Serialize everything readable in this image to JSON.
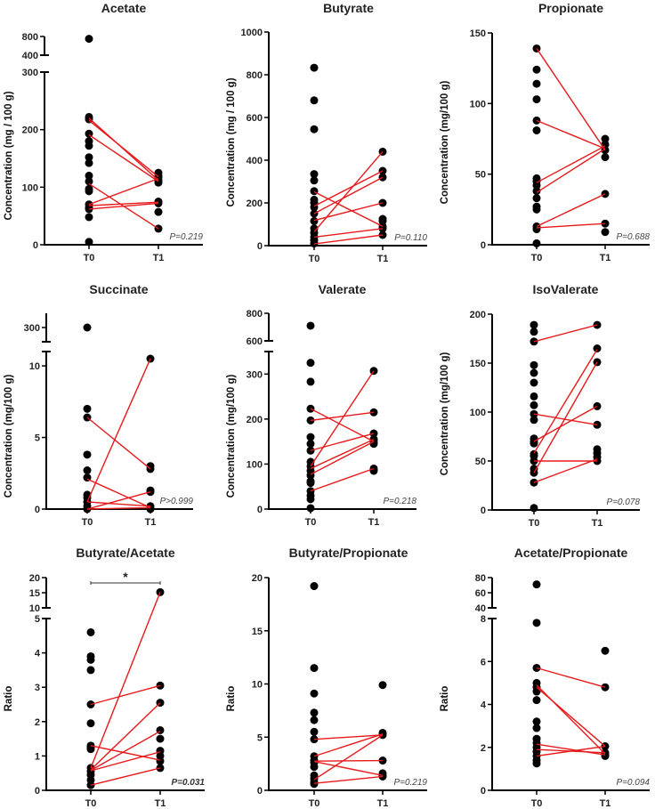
{
  "chart_data": [
    {
      "type": "scatter",
      "title": "Acetate",
      "ylabel": "Concentration  (mg / 100 g)",
      "categories": [
        "T0",
        "T1"
      ],
      "p_value": "P=0.219",
      "segments": [
        {
          "range": [
            0,
            300
          ],
          "ticks": [
            0,
            100,
            200,
            300
          ]
        },
        {
          "range": [
            400,
            800
          ],
          "ticks": [
            400,
            800
          ]
        }
      ],
      "T0": [
        750,
        222,
        218,
        193,
        180,
        172,
        152,
        142,
        120,
        110,
        97,
        93,
        70,
        65,
        62,
        48,
        5
      ],
      "T1": [
        125,
        120,
        117,
        112,
        108,
        75,
        72,
        57,
        28
      ],
      "pairs": [
        [
          220,
          112
        ],
        [
          216,
          118
        ],
        [
          191,
          110
        ],
        [
          70,
          115
        ],
        [
          106,
          28
        ],
        [
          68,
          74
        ],
        [
          62,
          72
        ]
      ]
    },
    {
      "type": "scatter",
      "title": "Butyrate",
      "ylabel": "Concentration  (mg / 100 g)",
      "categories": [
        "T0",
        "T1"
      ],
      "p_value": "P=0.110",
      "segments": [
        {
          "range": [
            0,
            1000
          ],
          "ticks": [
            0,
            200,
            400,
            600,
            800,
            1000
          ]
        }
      ],
      "T0": [
        833,
        680,
        545,
        335,
        305,
        255,
        215,
        200,
        180,
        150,
        115,
        80,
        60,
        40,
        25,
        10
      ],
      "T1": [
        440,
        350,
        320,
        200,
        125,
        115,
        90,
        80,
        50
      ],
      "pairs": [
        [
          252,
          90
        ],
        [
          185,
          350
        ],
        [
          150,
          320
        ],
        [
          118,
          200
        ],
        [
          65,
          440
        ],
        [
          40,
          80
        ],
        [
          8,
          50
        ]
      ]
    },
    {
      "type": "scatter",
      "title": "Propionate",
      "ylabel": "Concentration  (mg/100 g)",
      "categories": [
        "T0",
        "T1"
      ],
      "p_value": "P=0.688",
      "segments": [
        {
          "range": [
            0,
            150
          ],
          "ticks": [
            0,
            50,
            100,
            150
          ]
        }
      ],
      "T0": [
        139,
        124,
        114,
        103,
        88,
        81,
        47,
        45,
        42,
        38,
        33,
        27,
        25,
        13,
        11,
        1
      ],
      "T1": [
        75,
        71,
        67,
        62,
        36,
        15,
        9
      ],
      "pairs": [
        [
          139,
          67
        ],
        [
          88,
          68
        ],
        [
          44,
          70
        ],
        [
          37,
          68
        ],
        [
          13,
          36
        ],
        [
          12,
          15
        ]
      ]
    },
    {
      "type": "scatter",
      "title": "Succinate",
      "ylabel": "Concentration  (mg/100 g)",
      "categories": [
        "T0",
        "T1"
      ],
      "p_value": "P>0.999",
      "segments": [
        {
          "range": [
            0,
            11
          ],
          "ticks": [
            0,
            5,
            10
          ]
        },
        {
          "range": [
            280,
            320
          ],
          "ticks": [
            300
          ]
        }
      ],
      "T0": [
        300,
        7.0,
        6.4,
        3.8,
        2.7,
        2.2,
        1.0,
        0.8,
        0.5,
        0.2,
        0
      ],
      "T1": [
        10.5,
        3.0,
        2.8,
        1.3,
        1.2,
        0.2,
        0.1,
        0
      ],
      "pairs": [
        [
          6.4,
          2.8
        ],
        [
          2.1,
          0.1
        ],
        [
          0.5,
          10.5
        ],
        [
          0.5,
          0.2
        ],
        [
          0,
          1.2
        ],
        [
          0,
          0.1
        ]
      ]
    },
    {
      "type": "scatter",
      "title": "Valerate",
      "ylabel": "Concentration  (mg/100 g)",
      "categories": [
        "T0",
        "T1"
      ],
      "p_value": "P=0.218",
      "segments": [
        {
          "range": [
            0,
            350
          ],
          "ticks": [
            0,
            100,
            200,
            300
          ]
        },
        {
          "range": [
            600,
            800
          ],
          "ticks": [
            600,
            800
          ]
        }
      ],
      "T0": [
        710,
        325,
        283,
        223,
        197,
        160,
        145,
        130,
        105,
        95,
        85,
        75,
        62,
        58,
        40,
        30,
        22,
        2
      ],
      "T1": [
        307,
        215,
        168,
        155,
        150,
        145,
        90,
        85
      ],
      "pairs": [
        [
          223,
          150
        ],
        [
          197,
          215
        ],
        [
          130,
          168
        ],
        [
          95,
          307
        ],
        [
          90,
          155
        ],
        [
          77,
          150
        ],
        [
          40,
          90
        ]
      ]
    },
    {
      "type": "scatter",
      "title": "IsoValerate",
      "ylabel": "Concentration  (mg/100 g)",
      "categories": [
        "T0",
        "T1"
      ],
      "p_value": "P=0.078",
      "segments": [
        {
          "range": [
            0,
            200
          ],
          "ticks": [
            0,
            50,
            100,
            150,
            200
          ]
        }
      ],
      "T0": [
        189,
        182,
        172,
        148,
        140,
        130,
        116,
        107,
        98,
        92,
        73,
        70,
        68,
        57,
        55,
        50,
        42,
        38,
        28,
        2
      ],
      "T1": [
        189,
        165,
        151,
        106,
        87,
        62,
        58,
        54,
        50
      ],
      "pairs": [
        [
          172,
          189
        ],
        [
          98,
          87
        ],
        [
          70,
          106
        ],
        [
          58,
          164
        ],
        [
          38,
          151
        ],
        [
          50,
          50
        ],
        [
          28,
          52
        ]
      ]
    },
    {
      "type": "scatter",
      "title": "Butyrate/Acetate",
      "ylabel": "Ratio",
      "categories": [
        "T0",
        "T1"
      ],
      "p_value": "P=0.031",
      "significance": "*",
      "segments": [
        {
          "range": [
            0,
            5
          ],
          "ticks": [
            0,
            1,
            2,
            3,
            4,
            5
          ]
        },
        {
          "range": [
            10,
            20
          ],
          "ticks": [
            10,
            15,
            20
          ]
        }
      ],
      "T0": [
        4.6,
        3.9,
        3.8,
        3.5,
        2.5,
        1.95,
        1.3,
        1.25,
        1.2,
        0.65,
        0.55,
        0.45,
        0.3,
        0.15
      ],
      "T1": [
        15.2,
        3.05,
        2.55,
        1.75,
        1.5,
        1.15,
        1.0,
        0.85,
        0.65
      ],
      "pairs": [
        [
          2.5,
          3.05
        ],
        [
          1.3,
          0.88
        ],
        [
          0.65,
          15.2
        ],
        [
          0.6,
          2.55
        ],
        [
          0.58,
          1.72
        ],
        [
          0.57,
          1.12
        ],
        [
          0.15,
          0.65
        ]
      ]
    },
    {
      "type": "scatter",
      "title": "Butyrate/Propionate",
      "ylabel": "Ratio",
      "categories": [
        "T0",
        "T1"
      ],
      "p_value": "P=0.219",
      "segments": [
        {
          "range": [
            0,
            20
          ],
          "ticks": [
            0,
            5,
            10,
            15,
            20
          ]
        }
      ],
      "T0": [
        19.2,
        11.5,
        9.1,
        7.3,
        6.6,
        5.5,
        4.8,
        3.2,
        2.8,
        2.6,
        2.2,
        1.4,
        1.1,
        0.8,
        0.6
      ],
      "T1": [
        9.9,
        5.4,
        5.2,
        2.8,
        1.6,
        1.4,
        1.3
      ],
      "pairs": [
        [
          4.8,
          5.2
        ],
        [
          3.2,
          5.3
        ],
        [
          2.75,
          2.8
        ],
        [
          2.7,
          1.4
        ],
        [
          1.0,
          5.2
        ],
        [
          0.65,
          1.3
        ]
      ]
    },
    {
      "type": "scatter",
      "title": "Acetate/Propionate",
      "ylabel": "Ratio",
      "categories": [
        "T0",
        "T1"
      ],
      "p_value": "P=0.094",
      "segments": [
        {
          "range": [
            0,
            8
          ],
          "ticks": [
            0,
            2,
            4,
            6,
            8
          ]
        },
        {
          "range": [
            40,
            80
          ],
          "ticks": [
            40,
            60,
            80
          ]
        }
      ],
      "T0": [
        71,
        7.8,
        5.7,
        5.0,
        4.8,
        4.6,
        4.2,
        3.2,
        2.9,
        2.4,
        2.2,
        2.0,
        1.8,
        1.6,
        1.4,
        1.25
      ],
      "T1": [
        6.5,
        4.8,
        2.05,
        1.75,
        1.65,
        1.6
      ],
      "pairs": [
        [
          5.7,
          4.8
        ],
        [
          4.9,
          1.7
        ],
        [
          4.8,
          2.05
        ],
        [
          2.15,
          1.65
        ],
        [
          1.9,
          1.75
        ],
        [
          1.6,
          2.05
        ]
      ]
    }
  ],
  "colors": {
    "points": "#000000",
    "pair_lines": "#e8191b",
    "axis": "#000000"
  }
}
